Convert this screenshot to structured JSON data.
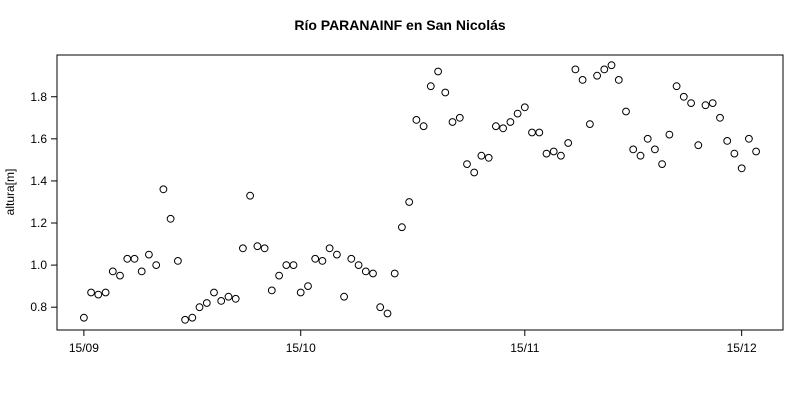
{
  "chart_data": {
    "type": "scatter",
    "title": "Río PARANAINF en San Nicolás",
    "xlabel": "",
    "ylabel": "altura[m]",
    "marker": "open-circle",
    "grid": false,
    "legend": "none",
    "colors": {
      "point_stroke": "#000000",
      "axis": "#000000",
      "background": "#ffffff"
    },
    "x_tick_days": [
      0,
      30,
      61,
      91
    ],
    "x_tick_labels": [
      "15/09",
      "15/10",
      "15/11",
      "15/12"
    ],
    "y_ticks": [
      0.8,
      1.0,
      1.2,
      1.4,
      1.6,
      1.8
    ],
    "ylim": [
      0.69,
      2.0
    ],
    "x": [
      0,
      1,
      2,
      3,
      4,
      5,
      6,
      7,
      8,
      9,
      10,
      11,
      12,
      13,
      14,
      15,
      16,
      17,
      18,
      19,
      20,
      21,
      22,
      23,
      24,
      25,
      26,
      27,
      28,
      29,
      30,
      31,
      32,
      33,
      34,
      35,
      36,
      37,
      38,
      39,
      40,
      41,
      42,
      43,
      44,
      45,
      46,
      47,
      48,
      49,
      50,
      51,
      52,
      53,
      54,
      55,
      56,
      57,
      58,
      59,
      60,
      61,
      62,
      63,
      64,
      65,
      66,
      67,
      68,
      69,
      70,
      71,
      72,
      73,
      74,
      75,
      76,
      77,
      78,
      79,
      80,
      81,
      82,
      83,
      84,
      85,
      86,
      87,
      88,
      89,
      90,
      91,
      92,
      93
    ],
    "y": [
      0.75,
      0.87,
      0.86,
      0.87,
      0.97,
      0.95,
      1.03,
      1.03,
      0.97,
      1.05,
      1.0,
      1.36,
      1.22,
      1.02,
      0.74,
      0.75,
      0.8,
      0.82,
      0.87,
      0.83,
      0.85,
      0.84,
      1.08,
      1.33,
      1.09,
      1.08,
      0.88,
      0.95,
      1.0,
      1.0,
      0.87,
      0.9,
      1.03,
      1.02,
      1.08,
      1.05,
      0.85,
      1.03,
      1.0,
      0.97,
      0.96,
      0.8,
      0.77,
      0.96,
      1.18,
      1.3,
      1.69,
      1.66,
      1.85,
      1.92,
      1.82,
      1.68,
      1.7,
      1.48,
      1.44,
      1.52,
      1.51,
      1.66,
      1.65,
      1.68,
      1.72,
      1.75,
      1.63,
      1.63,
      1.53,
      1.54,
      1.52,
      1.58,
      1.93,
      1.88,
      1.67,
      1.9,
      1.93,
      1.95,
      1.88,
      1.73,
      1.55,
      1.52,
      1.6,
      1.55,
      1.48,
      1.62,
      1.85,
      1.8,
      1.77,
      1.57,
      1.76,
      1.77,
      1.7,
      1.59,
      1.53,
      1.46,
      1.6,
      1.54
    ]
  }
}
